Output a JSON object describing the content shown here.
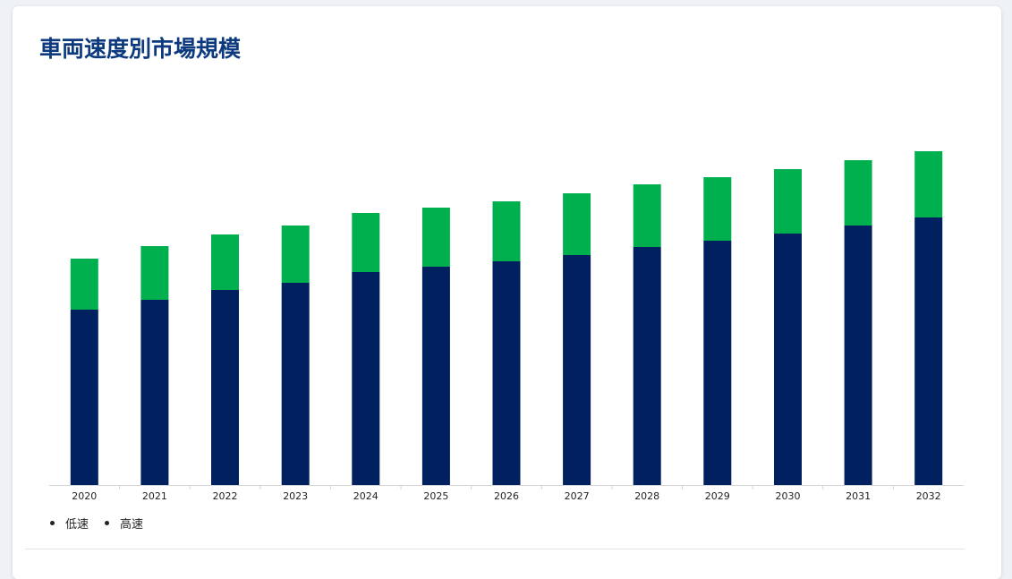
{
  "page": {
    "title": "車両速度別市場規模"
  },
  "chart_data": {
    "type": "bar",
    "stacked": true,
    "categories": [
      "2020",
      "2021",
      "2022",
      "2023",
      "2024",
      "2025",
      "2026",
      "2027",
      "2028",
      "2029",
      "2030",
      "2031",
      "2032"
    ],
    "series": [
      {
        "name": "低速",
        "color": "#00205f",
        "values": [
          196,
          207,
          218,
          226,
          238,
          244,
          250,
          257,
          266,
          273,
          281,
          290,
          299
        ]
      },
      {
        "name": "高速",
        "color": "#00b04f",
        "values": [
          57,
          60,
          62,
          64,
          66,
          66,
          67,
          69,
          70,
          71,
          72,
          73,
          74
        ]
      }
    ],
    "xlabel": "",
    "ylabel": "",
    "ylim": [
      0,
      400
    ],
    "grid": false,
    "legend_position": "bottom-left"
  }
}
